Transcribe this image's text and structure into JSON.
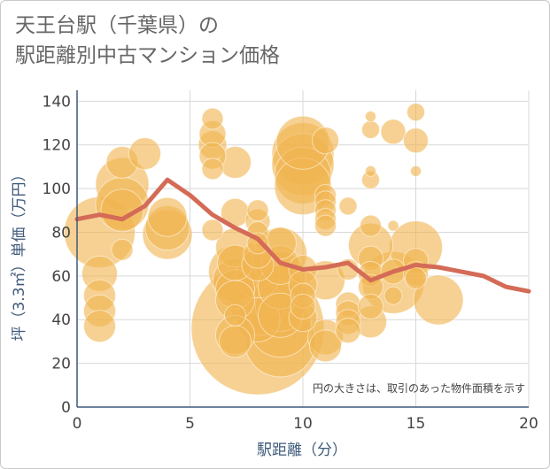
{
  "title_line1": "天王台駅（千葉県）の",
  "title_line2": "駅距離別中古マンション価格",
  "note": "円の大きさは、取引のあった物件面積を示す",
  "colors": {
    "bubble": "#f0b550",
    "line": "#d46b57",
    "axis": "#3f5a7a",
    "grid": "#d8d8d8"
  },
  "chart_data": {
    "type": "scatter",
    "xlabel": "駅距離（分）",
    "ylabel": "坪（3.3㎡）単価（万円）",
    "xlim": [
      0,
      20
    ],
    "ylim": [
      0,
      145
    ],
    "x_ticks": [
      "0",
      "5",
      "10",
      "15",
      "20"
    ],
    "y_ticks": [
      "0",
      "20",
      "40",
      "60",
      "80",
      "100",
      "120",
      "140"
    ],
    "grid": true,
    "series": [
      {
        "type": "bubble",
        "points": [
          {
            "x": 1,
            "y": 80,
            "s": 40
          },
          {
            "x": 1,
            "y": 61,
            "s": 20
          },
          {
            "x": 1,
            "y": 51,
            "s": 18
          },
          {
            "x": 1,
            "y": 44,
            "s": 18
          },
          {
            "x": 1,
            "y": 37,
            "s": 18
          },
          {
            "x": 2,
            "y": 112,
            "s": 18
          },
          {
            "x": 2,
            "y": 102,
            "s": 30
          },
          {
            "x": 2,
            "y": 93,
            "s": 30
          },
          {
            "x": 2,
            "y": 90,
            "s": 24
          },
          {
            "x": 2,
            "y": 72,
            "s": 12
          },
          {
            "x": 3,
            "y": 116,
            "s": 18
          },
          {
            "x": 4,
            "y": 87,
            "s": 22
          },
          {
            "x": 4,
            "y": 82,
            "s": 25
          },
          {
            "x": 4,
            "y": 79,
            "s": 28
          },
          {
            "x": 6,
            "y": 132,
            "s": 12
          },
          {
            "x": 6,
            "y": 125,
            "s": 15
          },
          {
            "x": 6,
            "y": 120,
            "s": 16
          },
          {
            "x": 6,
            "y": 115,
            "s": 15
          },
          {
            "x": 6,
            "y": 109,
            "s": 12
          },
          {
            "x": 6,
            "y": 81,
            "s": 12
          },
          {
            "x": 7,
            "y": 112,
            "s": 18
          },
          {
            "x": 7,
            "y": 89,
            "s": 16
          },
          {
            "x": 7,
            "y": 73,
            "s": 22
          },
          {
            "x": 7,
            "y": 66,
            "s": 20
          },
          {
            "x": 7,
            "y": 62,
            "s": 30
          },
          {
            "x": 7,
            "y": 58,
            "s": 25
          },
          {
            "x": 7,
            "y": 54,
            "s": 22
          },
          {
            "x": 7,
            "y": 49,
            "s": 22
          },
          {
            "x": 7,
            "y": 42,
            "s": 12
          },
          {
            "x": 7,
            "y": 33,
            "s": 22
          },
          {
            "x": 7,
            "y": 30,
            "s": 18
          },
          {
            "x": 8,
            "y": 90,
            "s": 12
          },
          {
            "x": 8,
            "y": 85,
            "s": 14
          },
          {
            "x": 8,
            "y": 80,
            "s": 12
          },
          {
            "x": 8,
            "y": 75,
            "s": 12
          },
          {
            "x": 8,
            "y": 70,
            "s": 16
          },
          {
            "x": 8,
            "y": 65,
            "s": 18
          },
          {
            "x": 8,
            "y": 60,
            "s": 25
          },
          {
            "x": 8,
            "y": 55,
            "s": 30
          },
          {
            "x": 8,
            "y": 50,
            "s": 35
          },
          {
            "x": 8,
            "y": 45,
            "s": 30
          },
          {
            "x": 8,
            "y": 40,
            "s": 25
          },
          {
            "x": 8,
            "y": 36,
            "s": 75
          },
          {
            "x": 9,
            "y": 75,
            "s": 18
          },
          {
            "x": 9,
            "y": 70,
            "s": 30
          },
          {
            "x": 9,
            "y": 65,
            "s": 22
          },
          {
            "x": 9,
            "y": 60,
            "s": 28
          },
          {
            "x": 9,
            "y": 55,
            "s": 25
          },
          {
            "x": 9,
            "y": 50,
            "s": 32
          },
          {
            "x": 9,
            "y": 46,
            "s": 28
          },
          {
            "x": 9,
            "y": 42,
            "s": 25
          },
          {
            "x": 9,
            "y": 37,
            "s": 35
          },
          {
            "x": 9,
            "y": 30,
            "s": 40
          },
          {
            "x": 10,
            "y": 121,
            "s": 30
          },
          {
            "x": 10,
            "y": 116,
            "s": 35
          },
          {
            "x": 10,
            "y": 111,
            "s": 35
          },
          {
            "x": 10,
            "y": 106,
            "s": 32
          },
          {
            "x": 10,
            "y": 101,
            "s": 32
          },
          {
            "x": 10,
            "y": 63,
            "s": 16
          },
          {
            "x": 10,
            "y": 56,
            "s": 16
          },
          {
            "x": 10,
            "y": 51,
            "s": 14
          },
          {
            "x": 10,
            "y": 46,
            "s": 14
          },
          {
            "x": 10,
            "y": 41,
            "s": 16
          },
          {
            "x": 11,
            "y": 122,
            "s": 15
          },
          {
            "x": 11,
            "y": 97,
            "s": 12
          },
          {
            "x": 11,
            "y": 94,
            "s": 12
          },
          {
            "x": 11,
            "y": 90,
            "s": 12
          },
          {
            "x": 11,
            "y": 86,
            "s": 12
          },
          {
            "x": 11,
            "y": 83,
            "s": 12
          },
          {
            "x": 11,
            "y": 58,
            "s": 22
          },
          {
            "x": 11,
            "y": 32,
            "s": 20
          },
          {
            "x": 11,
            "y": 28,
            "s": 18
          },
          {
            "x": 12,
            "y": 92,
            "s": 10
          },
          {
            "x": 12,
            "y": 63,
            "s": 12
          },
          {
            "x": 12,
            "y": 47,
            "s": 14
          },
          {
            "x": 12,
            "y": 43,
            "s": 14
          },
          {
            "x": 12,
            "y": 39,
            "s": 14
          },
          {
            "x": 12,
            "y": 35,
            "s": 14
          },
          {
            "x": 13,
            "y": 133,
            "s": 6
          },
          {
            "x": 13,
            "y": 127,
            "s": 10
          },
          {
            "x": 13,
            "y": 108,
            "s": 6
          },
          {
            "x": 13,
            "y": 104,
            "s": 10
          },
          {
            "x": 13,
            "y": 83,
            "s": 12
          },
          {
            "x": 13,
            "y": 74,
            "s": 25
          },
          {
            "x": 13,
            "y": 68,
            "s": 14
          },
          {
            "x": 13,
            "y": 61,
            "s": 14
          },
          {
            "x": 13,
            "y": 55,
            "s": 14
          },
          {
            "x": 13,
            "y": 46,
            "s": 14
          },
          {
            "x": 13,
            "y": 39,
            "s": 18
          },
          {
            "x": 14,
            "y": 126,
            "s": 14
          },
          {
            "x": 14,
            "y": 83,
            "s": 6
          },
          {
            "x": 14,
            "y": 62,
            "s": 14
          },
          {
            "x": 14,
            "y": 57,
            "s": 35
          },
          {
            "x": 14,
            "y": 51,
            "s": 10
          },
          {
            "x": 15,
            "y": 135,
            "s": 10
          },
          {
            "x": 15,
            "y": 122,
            "s": 14
          },
          {
            "x": 15,
            "y": 108,
            "s": 6
          },
          {
            "x": 15,
            "y": 73,
            "s": 30
          },
          {
            "x": 15,
            "y": 67,
            "s": 14
          },
          {
            "x": 15,
            "y": 61,
            "s": 14
          },
          {
            "x": 15,
            "y": 59,
            "s": 12
          },
          {
            "x": 16,
            "y": 49,
            "s": 28
          }
        ]
      },
      {
        "type": "line",
        "x": [
          0,
          1,
          2,
          3,
          4,
          5,
          6,
          7,
          8,
          9,
          10,
          11,
          12,
          13,
          14,
          15,
          16,
          17,
          18,
          19,
          20
        ],
        "y": [
          86,
          88,
          86,
          92,
          104,
          97,
          88,
          82,
          77,
          66,
          63,
          64,
          66,
          58,
          62,
          65,
          64,
          62,
          60,
          55,
          53
        ]
      }
    ]
  }
}
